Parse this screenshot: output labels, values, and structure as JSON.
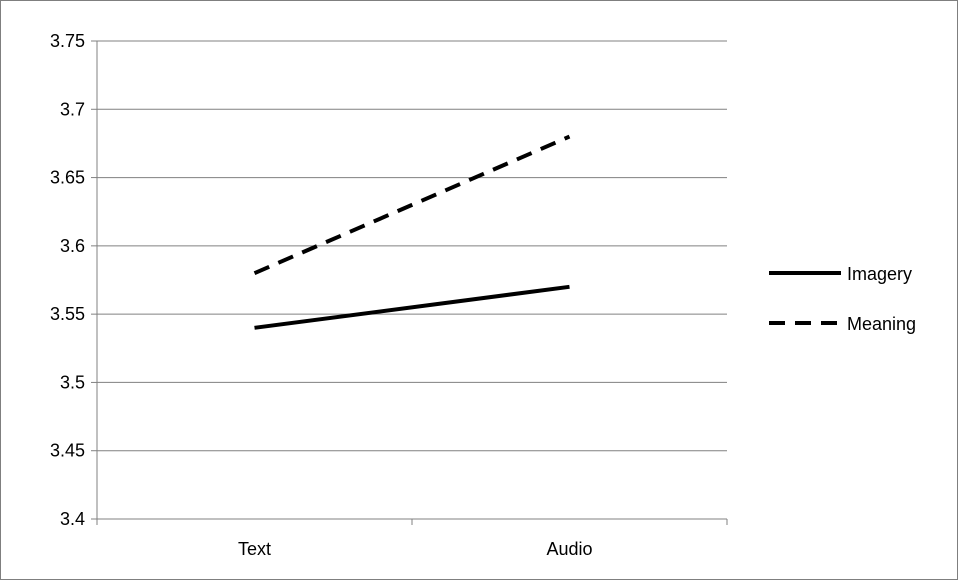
{
  "chart_data": {
    "type": "line",
    "categories": [
      "Text",
      "Audio"
    ],
    "series": [
      {
        "name": "Imagery",
        "values": [
          3.54,
          3.57
        ],
        "line_style": "solid",
        "color": "#000000"
      },
      {
        "name": "Meaning",
        "values": [
          3.58,
          3.68
        ],
        "line_style": "dashed",
        "color": "#000000"
      }
    ],
    "y_ticks": [
      "3.4",
      "3.45",
      "3.5",
      "3.55",
      "3.6",
      "3.65",
      "3.7",
      "3.75"
    ],
    "ylim": [
      3.4,
      3.75
    ],
    "grid": "horizontal major gridlines",
    "legend_position": "right",
    "colors": {
      "gridline": "#808080",
      "series": "#000000",
      "border": "#7f7f7f"
    }
  }
}
